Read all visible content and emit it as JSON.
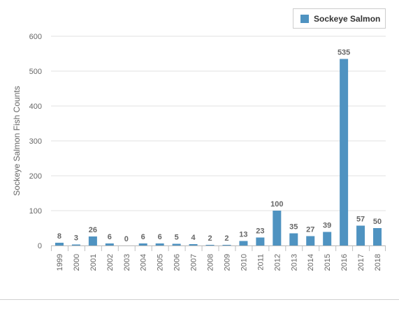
{
  "chart_data": {
    "type": "bar",
    "categories": [
      "1999",
      "2000",
      "2001",
      "2002",
      "2003",
      "2004",
      "2005",
      "2006",
      "2007",
      "2008",
      "2009",
      "2010",
      "2011",
      "2012",
      "2013",
      "2014",
      "2015",
      "2016",
      "2017",
      "2018"
    ],
    "series": [
      {
        "name": "Sockeye Salmon",
        "values": [
          8,
          3,
          26,
          6,
          0,
          6,
          6,
          5,
          4,
          2,
          2,
          13,
          23,
          100,
          35,
          27,
          39,
          535,
          57,
          50
        ]
      }
    ],
    "ylabel": "Sockeye Salmon Fish Counts",
    "xlabel": "",
    "ylim": [
      0,
      600
    ],
    "yticks": [
      0,
      100,
      200,
      300,
      400,
      500,
      600
    ],
    "grid": true,
    "legend": "top-right",
    "data_labels": true
  },
  "colors": {
    "bar": "#4f93c1",
    "grid": "#e0e0e0",
    "axis_text": "#666666",
    "data_label": "#666666"
  }
}
